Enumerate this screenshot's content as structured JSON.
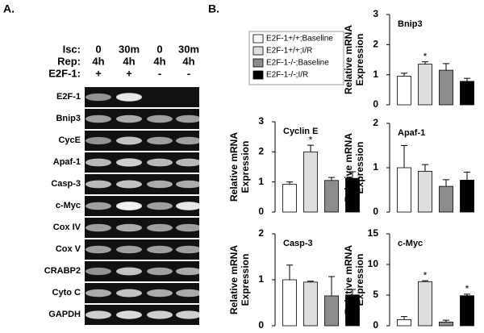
{
  "panel_labels": [
    "A.",
    "B."
  ],
  "gel": {
    "header_rows": [
      {
        "label": "Isc:",
        "values": [
          "0",
          "30m",
          "0",
          "30m"
        ]
      },
      {
        "label": "Rep:",
        "values": [
          "4h",
          "4h",
          "4h",
          "4h"
        ]
      },
      {
        "label": "E2F-1:",
        "values": [
          "+",
          "+",
          "-",
          "-"
        ]
      }
    ],
    "genes": [
      "E2F-1",
      "Bnip3",
      "CycE",
      "Apaf-1",
      "Casp-3",
      "c-Myc",
      "Cox IV",
      "Cox V",
      "CRABP2",
      "Cyto C",
      "GAPDH"
    ]
  },
  "legend": {
    "names": [
      "E2F-1+/+;Baseline",
      "E2F-1+/+;I/R",
      "E2F-1-/-;Baseline",
      "E2F-1-/-;I/R"
    ],
    "colors": [
      "#ffffff",
      "#dddddd",
      "#8c8c8c",
      "#000000"
    ]
  },
  "chart_data": [
    {
      "type": "bar",
      "title": "Bnip3",
      "ylabel": [
        "Relative mRNA",
        "Expression"
      ],
      "values": [
        0.95,
        1.35,
        1.15,
        0.78
      ],
      "errors": [
        0.1,
        0.08,
        0.22,
        0.1
      ],
      "annotations": [
        null,
        "*",
        null,
        null
      ],
      "ylim": [
        0,
        3
      ],
      "yticks": [
        0,
        1,
        2,
        3
      ]
    },
    {
      "type": "bar",
      "title": "Cyclin E",
      "ylabel": [
        "Relative mRNA",
        "Expression"
      ],
      "values": [
        0.92,
        2.0,
        1.05,
        1.12
      ],
      "errors": [
        0.08,
        0.22,
        0.1,
        0.22
      ],
      "annotations": [
        null,
        "*",
        null,
        null
      ],
      "ylim": [
        0,
        3
      ],
      "yticks": [
        0,
        1,
        2,
        3
      ]
    },
    {
      "type": "bar",
      "title": "Apaf-1",
      "ylabel": [
        "Relative mRNA",
        "Expression"
      ],
      "values": [
        1.0,
        0.92,
        0.58,
        0.72
      ],
      "errors": [
        0.5,
        0.15,
        0.15,
        0.18
      ],
      "annotations": [
        null,
        null,
        null,
        null
      ],
      "ylim": [
        0,
        2
      ],
      "yticks": [
        0,
        1,
        2
      ]
    },
    {
      "type": "bar",
      "title": "Casp-3",
      "ylabel": [
        "Relative mRNA",
        "Expression"
      ],
      "values": [
        1.0,
        0.95,
        0.65,
        0.67
      ],
      "errors": [
        0.32,
        0.02,
        0.42,
        0.12
      ],
      "annotations": [
        null,
        null,
        null,
        null
      ],
      "ylim": [
        0,
        2
      ],
      "yticks": [
        0,
        1,
        2
      ]
    },
    {
      "type": "bar",
      "title": "c-Myc",
      "ylabel": [
        "Relative mRNA",
        "Expression"
      ],
      "values": [
        1.0,
        7.2,
        0.6,
        4.9
      ],
      "errors": [
        0.5,
        0.15,
        0.3,
        0.25
      ],
      "annotations": [
        null,
        "*",
        null,
        "*"
      ],
      "ylim": [
        0,
        15
      ],
      "yticks": [
        0,
        5,
        10,
        15
      ]
    }
  ]
}
